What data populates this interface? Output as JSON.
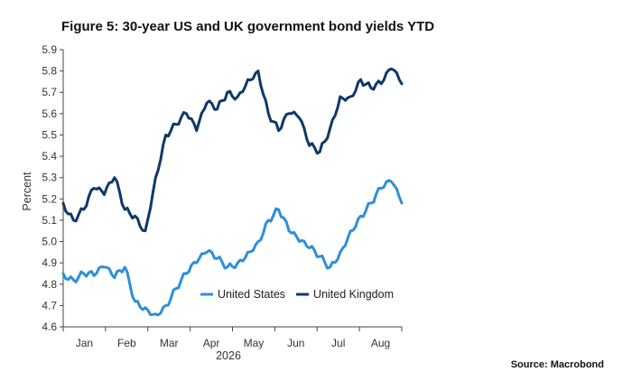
{
  "title": "Figure 5: 30-year US and UK government bond yields YTD",
  "source": "Source: Macrobond",
  "chart_data": {
    "type": "line",
    "title": "Figure 5: 30-year US and UK government bond yields YTD",
    "ylabel": "Percent",
    "xlabel": "2026",
    "ylim": [
      4.6,
      5.9
    ],
    "y_ticks": [
      "4.6",
      "4.7",
      "4.8",
      "4.9",
      "5.0",
      "5.1",
      "5.2",
      "5.3",
      "5.4",
      "5.5",
      "5.6",
      "5.7",
      "5.8",
      "5.9"
    ],
    "x_ticks": [
      "Jan",
      "Feb",
      "Mar",
      "Apr",
      "May",
      "Jun",
      "Jul",
      "Aug"
    ],
    "x_domain_weeks": [
      0,
      33
    ],
    "legend": "bottom-right, inside plot",
    "grid": false,
    "series": [
      {
        "name": "United States",
        "color": "#2f8fd8",
        "x": [
          0,
          1,
          2,
          3,
          4,
          5,
          6,
          7,
          8,
          9,
          10,
          11,
          12,
          13,
          14,
          15,
          16,
          17,
          18,
          19,
          20,
          21,
          22,
          23,
          24,
          25,
          26,
          27,
          28,
          29,
          30,
          31,
          32,
          33
        ],
        "values": [
          4.85,
          4.82,
          4.85,
          4.84,
          4.88,
          4.83,
          4.88,
          4.72,
          4.69,
          4.66,
          4.7,
          4.78,
          4.85,
          4.9,
          4.95,
          4.92,
          4.88,
          4.9,
          4.95,
          5.0,
          5.1,
          5.15,
          5.05,
          5.0,
          4.97,
          4.93,
          4.88,
          4.95,
          5.05,
          5.12,
          5.18,
          5.25,
          5.28,
          5.18
        ]
      },
      {
        "name": "United Kingdom",
        "color": "#0f3868",
        "x": [
          0,
          1,
          2,
          3,
          4,
          5,
          6,
          7,
          8,
          9,
          10,
          11,
          12,
          13,
          14,
          15,
          16,
          17,
          18,
          19,
          20,
          21,
          22,
          23,
          24,
          25,
          26,
          27,
          28,
          29,
          30,
          31,
          32,
          33
        ],
        "values": [
          5.18,
          5.1,
          5.15,
          5.25,
          5.22,
          5.3,
          5.15,
          5.12,
          5.05,
          5.3,
          5.5,
          5.55,
          5.6,
          5.52,
          5.65,
          5.62,
          5.7,
          5.68,
          5.76,
          5.8,
          5.6,
          5.52,
          5.6,
          5.58,
          5.45,
          5.42,
          5.53,
          5.68,
          5.68,
          5.76,
          5.72,
          5.74,
          5.81,
          5.74
        ]
      }
    ]
  }
}
